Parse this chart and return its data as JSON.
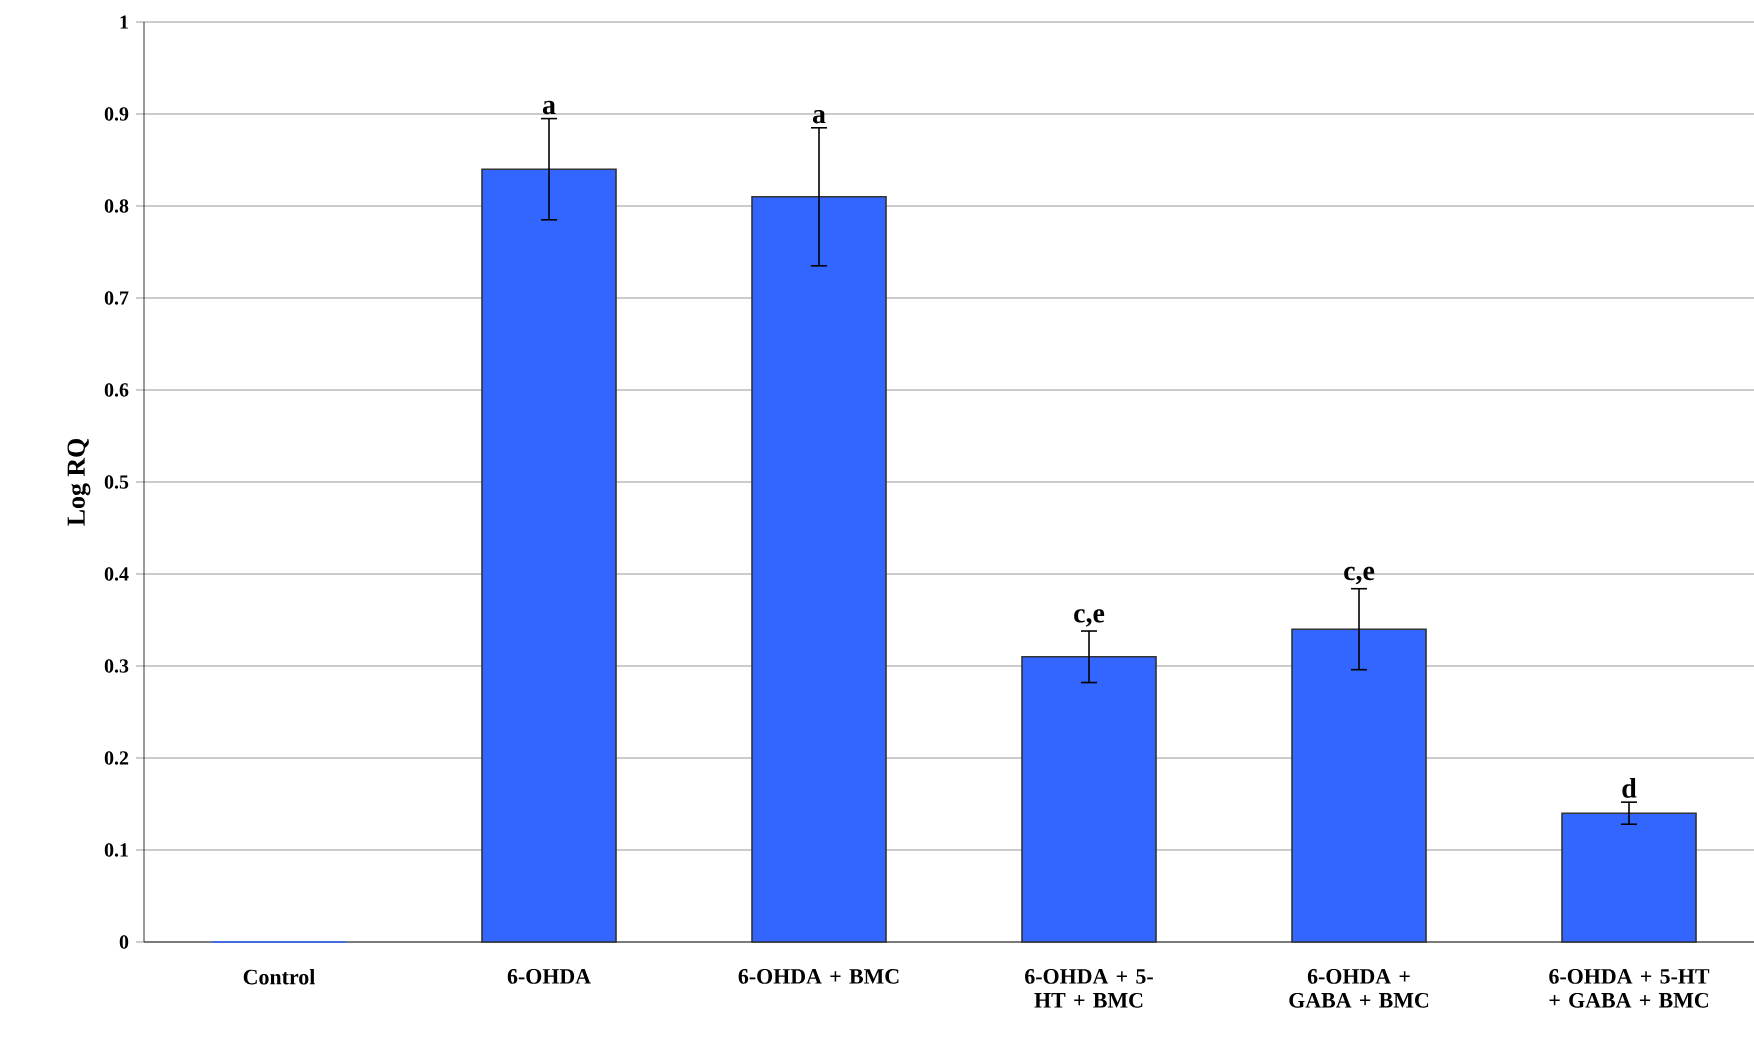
{
  "chart_data": {
    "type": "bar",
    "ylabel": "Log RQ",
    "categories": [
      "Control",
      "6-OHDA",
      "6-OHDA + BMC",
      "6-OHDA + 5-HT + BMC",
      "6-OHDA + GABA + BMC",
      "6-OHDA + 5-HT + GABA + BMC"
    ],
    "values": [
      0,
      0.84,
      0.81,
      0.31,
      0.34,
      0.14
    ],
    "errors": [
      null,
      0.055,
      0.075,
      0.028,
      0.044,
      0.012
    ],
    "color": "#3366ff",
    "ylim": [
      0,
      1
    ],
    "yticks": [
      0,
      0.1,
      0.2,
      0.3,
      0.4,
      0.5,
      0.6,
      0.7,
      0.8,
      0.9,
      1
    ],
    "grid": "y",
    "annotations": [
      {
        "text": "a",
        "x": "6-OHDA",
        "y": 0.895
      },
      {
        "text": "a",
        "x": "6-OHDA + BMC",
        "y": 0.885
      },
      {
        "text": "c,e",
        "x": "6-OHDA + 5-HT + BMC",
        "y": 0.338
      },
      {
        "text": "c,e",
        "x": "6-OHDA + GABA + BMC",
        "y": 0.384
      },
      {
        "text": "d",
        "x": "6-OHDA + 5-HT + GABA + BMC",
        "y": 0.152
      }
    ]
  }
}
